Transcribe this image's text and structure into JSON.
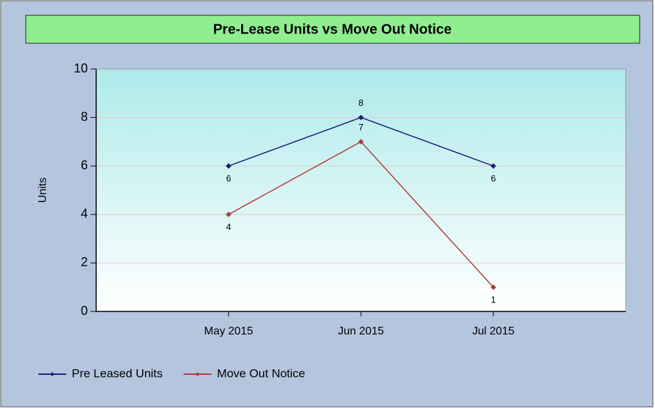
{
  "chart_data": {
    "type": "line",
    "title": "Pre-Lease Units vs Move Out Notice",
    "y_label": "Units",
    "categories": [
      "May 2015",
      "Jun 2015",
      "Jul 2015"
    ],
    "series": [
      {
        "name": "Pre Leased Units",
        "color": "#1c1c78",
        "values": [
          6,
          8,
          6
        ]
      },
      {
        "name": "Move Out Notice",
        "color": "#b03c3c",
        "values": [
          4,
          7,
          1
        ]
      }
    ],
    "ylim": [
      0,
      10
    ],
    "yticks": [
      0,
      2,
      4,
      6,
      8,
      10
    ],
    "grid": true,
    "legend": "bottom-left"
  }
}
